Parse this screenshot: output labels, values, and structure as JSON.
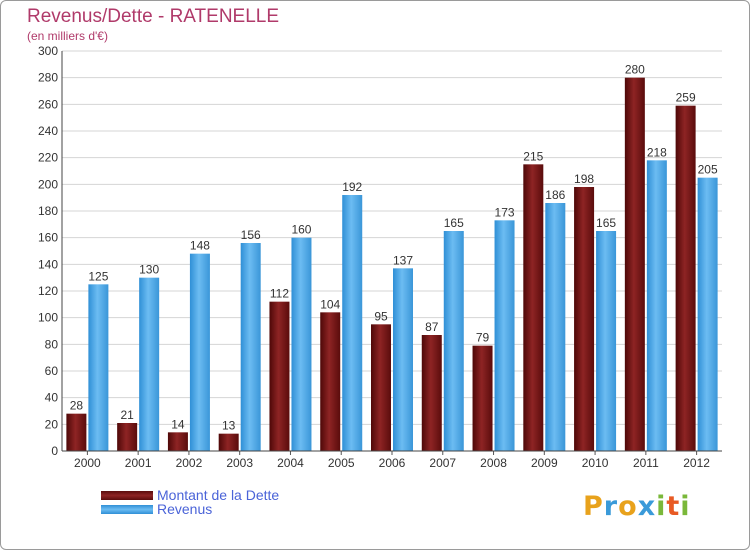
{
  "chart_data": {
    "type": "bar",
    "title": "Revenus/Dette - RATENELLE",
    "subtitle": "(en milliers d'€)",
    "categories": [
      "2000",
      "2001",
      "2002",
      "2003",
      "2004",
      "2005",
      "2006",
      "2007",
      "2008",
      "2009",
      "2010",
      "2011",
      "2012"
    ],
    "series": [
      {
        "name": "Montant de la Dette",
        "color": "#7a1414",
        "values": [
          28,
          21,
          14,
          13,
          112,
          104,
          95,
          87,
          79,
          215,
          198,
          280,
          259
        ]
      },
      {
        "name": "Revenus",
        "color": "#4da6e6",
        "values": [
          125,
          130,
          148,
          156,
          160,
          192,
          137,
          165,
          173,
          186,
          165,
          218,
          205
        ]
      }
    ],
    "ylim": [
      0,
      300
    ],
    "yticks": [
      0,
      20,
      40,
      60,
      80,
      100,
      120,
      140,
      160,
      180,
      200,
      220,
      240,
      260,
      280,
      300
    ],
    "grid": true,
    "legend_position": "bottom-left"
  },
  "logo": {
    "letters": [
      "P",
      "r",
      "o",
      "x",
      "i",
      "t",
      "i"
    ],
    "colors": [
      "#e8a21c",
      "#3a9ad9",
      "#e8a21c",
      "#3a9ad9",
      "#7ab83a",
      "#e85a24",
      "#7ab83a"
    ]
  }
}
